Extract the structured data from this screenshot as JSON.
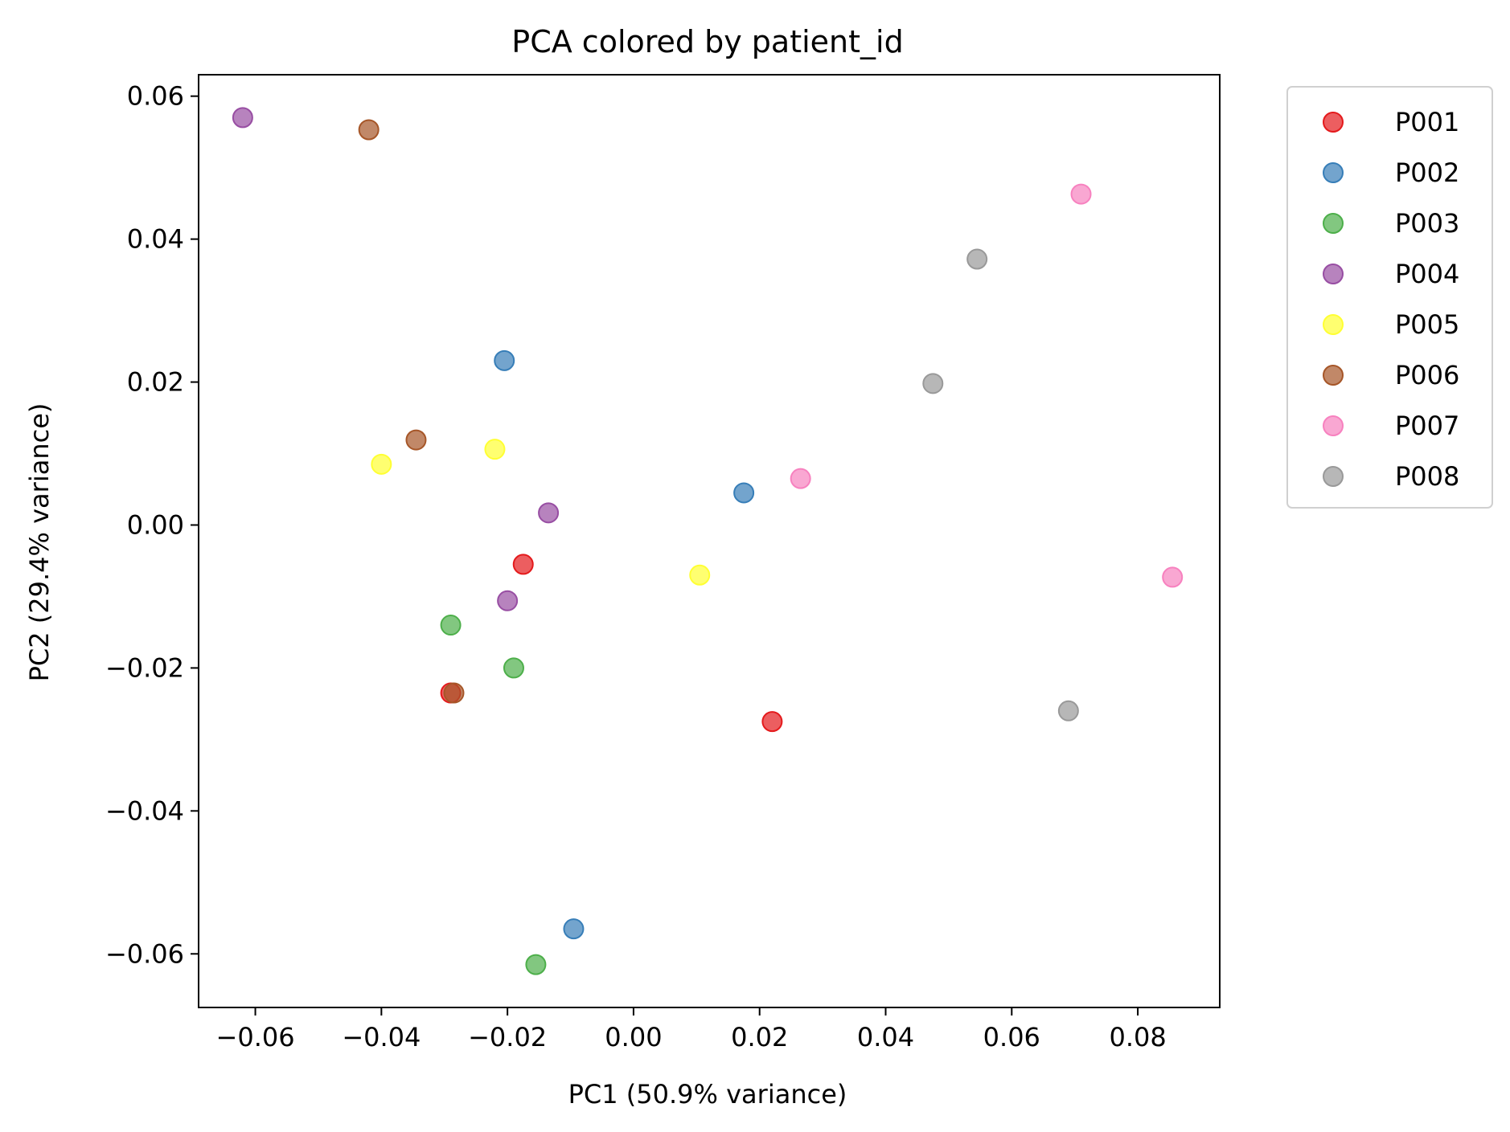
{
  "chart_data": {
    "type": "scatter",
    "title": "PCA colored by patient_id",
    "xlabel": "PC1 (50.9% variance)",
    "ylabel": "PC2 (29.4% variance)",
    "xlim": [
      -0.069,
      0.093
    ],
    "ylim": [
      -0.0675,
      0.063
    ],
    "xticks": [
      -0.06,
      -0.04,
      -0.02,
      0.0,
      0.02,
      0.04,
      0.06,
      0.08
    ],
    "xtick_labels": [
      "−0.06",
      "−0.04",
      "−0.02",
      "0.00",
      "0.02",
      "0.04",
      "0.06",
      "0.08"
    ],
    "yticks": [
      0.06,
      0.04,
      0.02,
      0.0,
      -0.02,
      -0.04,
      -0.06
    ],
    "ytick_labels": [
      "0.06",
      "0.04",
      "0.02",
      "0.00",
      "−0.02",
      "−0.04",
      "−0.06"
    ],
    "grid": false,
    "legend_position": "outside-right-top",
    "series": [
      {
        "name": "P001",
        "color": "#e41a1c",
        "points": [
          [
            -0.0175,
            -0.0055
          ],
          [
            0.022,
            -0.0275
          ],
          [
            -0.029,
            -0.0235
          ]
        ]
      },
      {
        "name": "P002",
        "color": "#377eb8",
        "points": [
          [
            -0.0205,
            0.023
          ],
          [
            0.0175,
            0.0045
          ],
          [
            -0.0095,
            -0.0565
          ]
        ]
      },
      {
        "name": "P003",
        "color": "#4daf4a",
        "points": [
          [
            -0.029,
            -0.014
          ],
          [
            -0.019,
            -0.02
          ],
          [
            -0.0155,
            -0.0615
          ]
        ]
      },
      {
        "name": "P004",
        "color": "#984ea3",
        "points": [
          [
            -0.062,
            0.057
          ],
          [
            -0.0135,
            0.0017
          ],
          [
            -0.02,
            -0.0106
          ]
        ]
      },
      {
        "name": "P005",
        "color": "#ffff33",
        "points": [
          [
            -0.04,
            0.0085
          ],
          [
            -0.022,
            0.0106
          ],
          [
            0.0105,
            -0.007
          ]
        ]
      },
      {
        "name": "P006",
        "color": "#a65628",
        "points": [
          [
            -0.042,
            0.0553
          ],
          [
            -0.0345,
            0.0119
          ],
          [
            -0.0285,
            -0.0235
          ]
        ]
      },
      {
        "name": "P007",
        "color": "#f781bf",
        "points": [
          [
            0.071,
            0.0463
          ],
          [
            0.0265,
            0.0065
          ],
          [
            0.0855,
            -0.0073
          ]
        ]
      },
      {
        "name": "P008",
        "color": "#999999",
        "points": [
          [
            0.0545,
            0.0372
          ],
          [
            0.0475,
            0.0198
          ],
          [
            0.069,
            -0.026
          ]
        ]
      }
    ]
  }
}
